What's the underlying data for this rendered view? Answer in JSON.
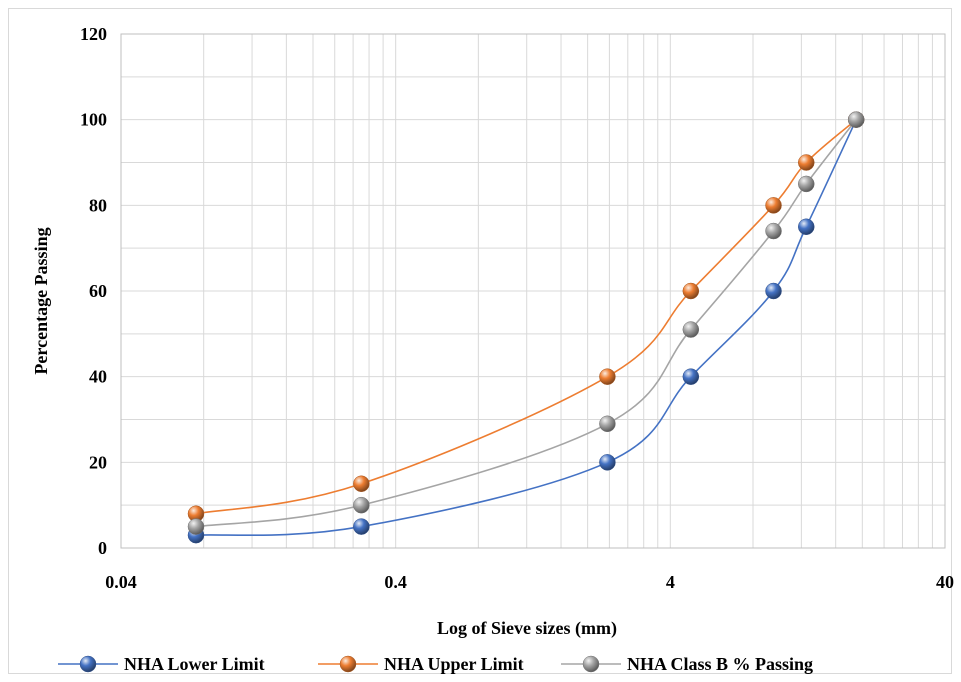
{
  "chart_data": {
    "type": "line",
    "xlabel": "Log of Sieve sizes (mm)",
    "ylabel": "Percentage Passing",
    "x_scale": "log",
    "xlim": [
      0.04,
      40
    ],
    "ylim": [
      0,
      120
    ],
    "x_tick_labels": [
      "0.04",
      "0.4",
      "4",
      "40"
    ],
    "y_tick_labels": [
      "0",
      "20",
      "40",
      "60",
      "80",
      "100",
      "120"
    ],
    "grid": true,
    "legend_position": "bottom",
    "series": [
      {
        "name": "NHA Lower Limit",
        "color": "#4472c4",
        "points": [
          [
            0.075,
            3
          ],
          [
            0.3,
            5
          ],
          [
            2.36,
            20
          ],
          [
            4.75,
            40
          ],
          [
            9.5,
            60
          ],
          [
            12.5,
            75
          ],
          [
            19,
            100
          ]
        ]
      },
      {
        "name": "NHA Upper Limit",
        "color": "#ed7d31",
        "points": [
          [
            0.075,
            8
          ],
          [
            0.3,
            15
          ],
          [
            2.36,
            40
          ],
          [
            4.75,
            60
          ],
          [
            9.5,
            80
          ],
          [
            12.5,
            90
          ],
          [
            19,
            100
          ]
        ]
      },
      {
        "name": "NHA Class B % Passing",
        "color": "#a5a5a5",
        "points": [
          [
            0.075,
            5
          ],
          [
            0.3,
            10
          ],
          [
            2.36,
            29
          ],
          [
            4.75,
            51
          ],
          [
            9.5,
            74
          ],
          [
            12.5,
            85
          ],
          [
            19,
            100
          ]
        ]
      }
    ]
  }
}
